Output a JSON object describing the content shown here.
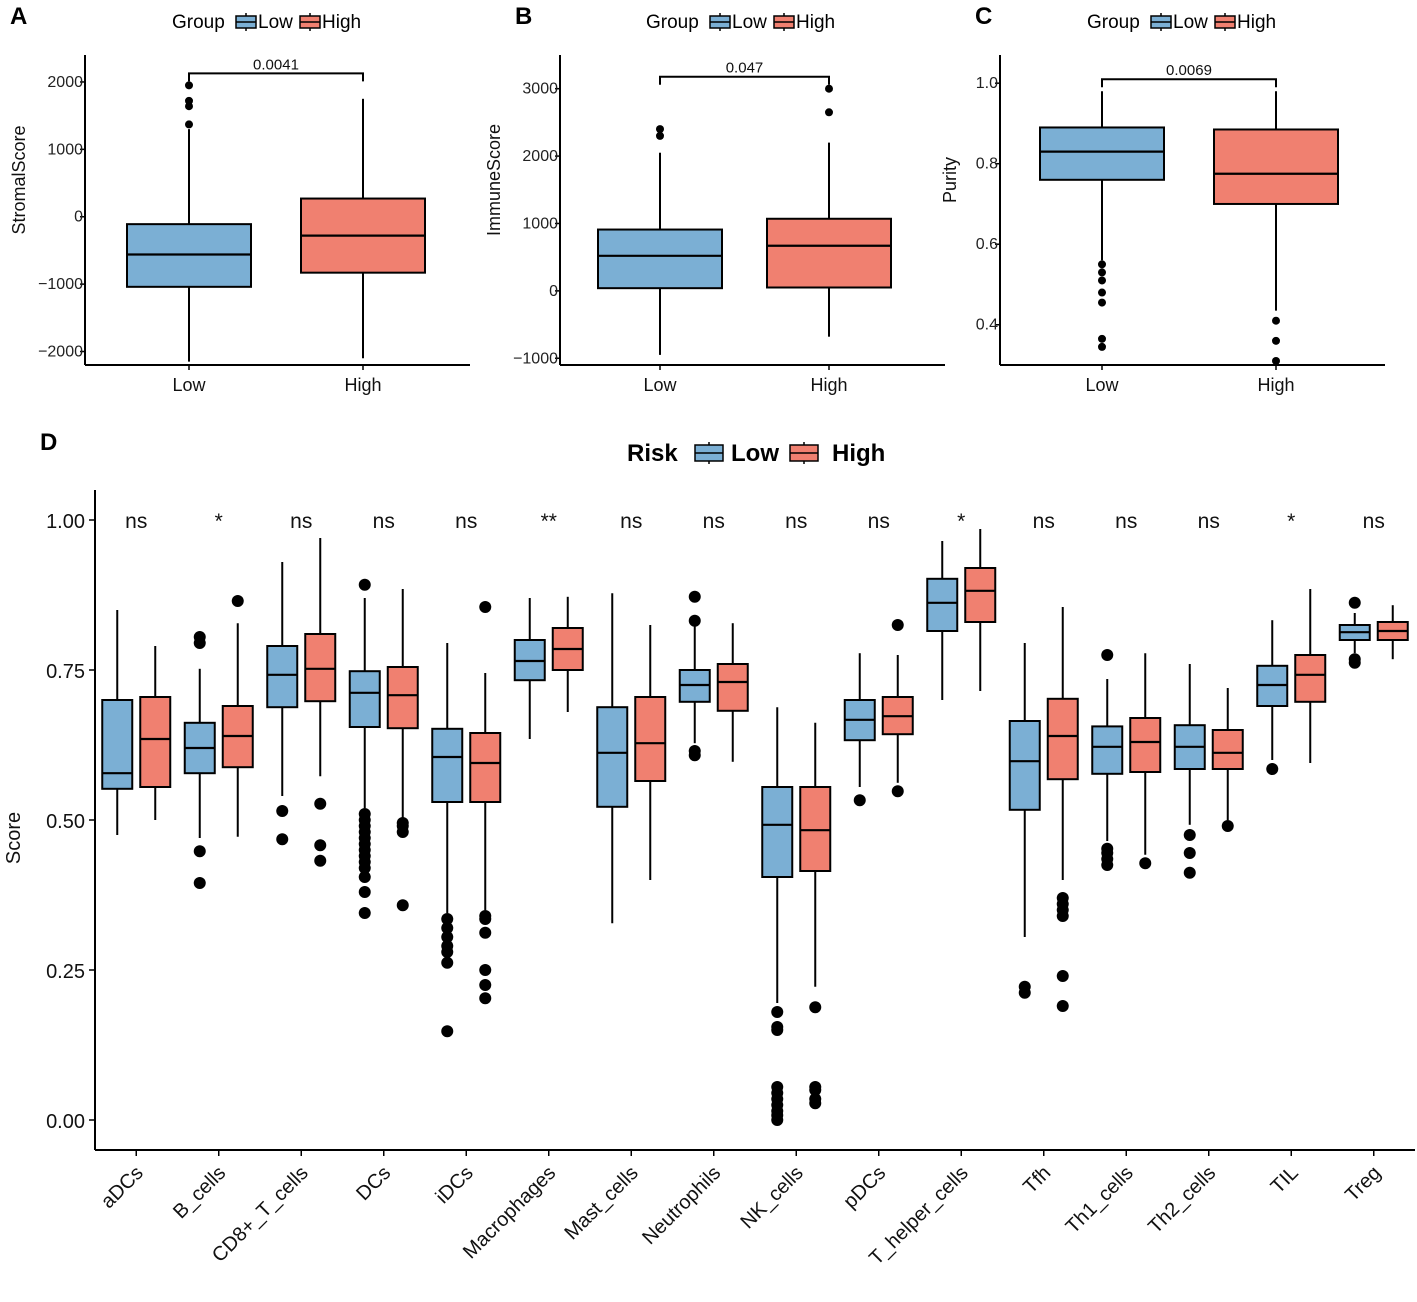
{
  "colors": {
    "low": "#7BAFD4",
    "high": "#F08070",
    "stroke": "#000000"
  },
  "chart_data": [
    {
      "panel": "A",
      "type": "box",
      "legend": {
        "title": "Group",
        "items": [
          "Low",
          "High"
        ]
      },
      "ylabel": "StromalScore",
      "xlabel": "",
      "categories": [
        "Low",
        "High"
      ],
      "ylim": [
        -2200,
        2400
      ],
      "yticks": [
        -2000,
        -1000,
        0,
        1000,
        2000
      ],
      "ytick_labels": [
        "−2000",
        "−1000",
        "0",
        "1000",
        "2000"
      ],
      "pvalue": "0.0041",
      "boxes": [
        {
          "group": "Low",
          "min": -2150,
          "q1": -1040,
          "median": -560,
          "q3": -110,
          "max": 1300,
          "outliers": [
            1950,
            1720,
            1640,
            1370
          ]
        },
        {
          "group": "High",
          "min": -2100,
          "q1": -830,
          "median": -280,
          "q3": 270,
          "max": 1750,
          "outliers": []
        }
      ]
    },
    {
      "panel": "B",
      "type": "box",
      "legend": {
        "title": "Group",
        "items": [
          "Low",
          "High"
        ]
      },
      "ylabel": "ImmuneScore",
      "xlabel": "",
      "categories": [
        "Low",
        "High"
      ],
      "ylim": [
        -1100,
        3500
      ],
      "yticks": [
        -1000,
        0,
        1000,
        2000,
        3000
      ],
      "ytick_labels": [
        "−1000",
        "0",
        "1000",
        "2000",
        "3000"
      ],
      "pvalue": "0.047",
      "boxes": [
        {
          "group": "Low",
          "min": -950,
          "q1": 40,
          "median": 520,
          "q3": 910,
          "max": 2050,
          "outliers": [
            2400,
            2300
          ]
        },
        {
          "group": "High",
          "min": -680,
          "q1": 50,
          "median": 670,
          "q3": 1070,
          "max": 2200,
          "outliers": [
            3000,
            2650
          ]
        }
      ]
    },
    {
      "panel": "C",
      "type": "box",
      "legend": {
        "title": "Group",
        "items": [
          "Low",
          "High"
        ]
      },
      "ylabel": "Purity",
      "xlabel": "",
      "categories": [
        "Low",
        "High"
      ],
      "ylim": [
        0.3,
        1.07
      ],
      "yticks": [
        0.4,
        0.6,
        0.8,
        1.0
      ],
      "ytick_labels": [
        "0.4",
        "0.6",
        "0.8",
        "1.0"
      ],
      "pvalue": "0.0069",
      "boxes": [
        {
          "group": "Low",
          "min": 0.56,
          "q1": 0.76,
          "median": 0.83,
          "q3": 0.89,
          "max": 0.98,
          "outliers": [
            0.55,
            0.53,
            0.51,
            0.48,
            0.455,
            0.365,
            0.345
          ]
        },
        {
          "group": "High",
          "min": 0.435,
          "q1": 0.7,
          "median": 0.775,
          "q3": 0.885,
          "max": 0.98,
          "outliers": [
            0.41,
            0.36,
            0.31
          ]
        }
      ]
    },
    {
      "panel": "D",
      "type": "box",
      "legend": {
        "title": "Risk",
        "items": [
          "Low",
          "High"
        ]
      },
      "ylabel": "Score",
      "xlabel": "",
      "ylim": [
        -0.05,
        1.05
      ],
      "yticks": [
        0.0,
        0.25,
        0.5,
        0.75,
        1.0
      ],
      "ytick_labels": [
        "0.00",
        "0.25",
        "0.50",
        "0.75",
        "1.00"
      ],
      "categories": [
        "aDCs",
        "B_cells",
        "CD8+_T_cells",
        "DCs",
        "iDCs",
        "Macrophages",
        "Mast_cells",
        "Neutrophils",
        "NK_cells",
        "pDCs",
        "T_helper_cells",
        "Tfh",
        "Th1_cells",
        "Th2_cells",
        "TIL",
        "Treg"
      ],
      "significance": [
        "ns",
        "*",
        "ns",
        "ns",
        "ns",
        "**",
        "ns",
        "ns",
        "ns",
        "ns",
        "*",
        "ns",
        "ns",
        "ns",
        "*",
        "ns"
      ],
      "series": [
        {
          "name": "Low",
          "boxes": [
            {
              "min": 0.475,
              "q1": 0.552,
              "median": 0.578,
              "q3": 0.7,
              "max": 0.85,
              "outliers": []
            },
            {
              "min": 0.47,
              "q1": 0.578,
              "median": 0.62,
              "q3": 0.662,
              "max": 0.752,
              "outliers": [
                0.805,
                0.795,
                0.448,
                0.395
              ]
            },
            {
              "min": 0.54,
              "q1": 0.688,
              "median": 0.742,
              "q3": 0.79,
              "max": 0.93,
              "outliers": [
                0.515,
                0.468
              ]
            },
            {
              "min": 0.52,
              "q1": 0.655,
              "median": 0.712,
              "q3": 0.748,
              "max": 0.87,
              "outliers": [
                0.892,
                0.51,
                0.5,
                0.49,
                0.48,
                0.47,
                0.46,
                0.45,
                0.44,
                0.43,
                0.42,
                0.405,
                0.38,
                0.345
              ]
            },
            {
              "min": 0.345,
              "q1": 0.53,
              "median": 0.605,
              "q3": 0.652,
              "max": 0.795,
              "outliers": [
                0.335,
                0.32,
                0.305,
                0.29,
                0.28,
                0.262,
                0.148
              ]
            },
            {
              "min": 0.635,
              "q1": 0.733,
              "median": 0.765,
              "q3": 0.8,
              "max": 0.87,
              "outliers": []
            },
            {
              "min": 0.328,
              "q1": 0.522,
              "median": 0.612,
              "q3": 0.688,
              "max": 0.878,
              "outliers": []
            },
            {
              "min": 0.628,
              "q1": 0.697,
              "median": 0.725,
              "q3": 0.75,
              "max": 0.84,
              "outliers": [
                0.872,
                0.832,
                0.615,
                0.608
              ]
            },
            {
              "min": 0.195,
              "q1": 0.405,
              "median": 0.492,
              "q3": 0.555,
              "max": 0.688,
              "outliers": [
                0.18,
                0.155,
                0.15,
                0.055,
                0.045,
                0.035,
                0.025,
                0.015,
                0.008,
                0.0
              ]
            },
            {
              "min": 0.555,
              "q1": 0.633,
              "median": 0.667,
              "q3": 0.7,
              "max": 0.778,
              "outliers": [
                0.533
              ]
            },
            {
              "min": 0.7,
              "q1": 0.815,
              "median": 0.862,
              "q3": 0.902,
              "max": 0.965,
              "outliers": []
            },
            {
              "min": 0.305,
              "q1": 0.517,
              "median": 0.598,
              "q3": 0.665,
              "max": 0.795,
              "outliers": [
                0.222,
                0.212
              ]
            },
            {
              "min": 0.465,
              "q1": 0.577,
              "median": 0.622,
              "q3": 0.656,
              "max": 0.735,
              "outliers": [
                0.775,
                0.452,
                0.445,
                0.435,
                0.425
              ]
            },
            {
              "min": 0.492,
              "q1": 0.585,
              "median": 0.622,
              "q3": 0.658,
              "max": 0.76,
              "outliers": [
                0.475,
                0.445,
                0.412
              ]
            },
            {
              "min": 0.6,
              "q1": 0.69,
              "median": 0.725,
              "q3": 0.757,
              "max": 0.833,
              "outliers": [
                0.585
              ]
            },
            {
              "min": 0.778,
              "q1": 0.8,
              "median": 0.813,
              "q3": 0.825,
              "max": 0.845,
              "outliers": [
                0.862,
                0.768,
                0.762
              ]
            }
          ]
        },
        {
          "name": "High",
          "boxes": [
            {
              "min": 0.5,
              "q1": 0.555,
              "median": 0.635,
              "q3": 0.705,
              "max": 0.79,
              "outliers": []
            },
            {
              "min": 0.472,
              "q1": 0.588,
              "median": 0.64,
              "q3": 0.69,
              "max": 0.828,
              "outliers": [
                0.865
              ]
            },
            {
              "min": 0.573,
              "q1": 0.698,
              "median": 0.752,
              "q3": 0.81,
              "max": 0.97,
              "outliers": [
                0.527,
                0.458,
                0.432
              ]
            },
            {
              "min": 0.5,
              "q1": 0.653,
              "median": 0.708,
              "q3": 0.755,
              "max": 0.885,
              "outliers": [
                0.495,
                0.49,
                0.48,
                0.358
              ]
            },
            {
              "min": 0.35,
              "q1": 0.53,
              "median": 0.595,
              "q3": 0.645,
              "max": 0.745,
              "outliers": [
                0.855,
                0.34,
                0.335,
                0.312,
                0.25,
                0.225,
                0.203
              ]
            },
            {
              "min": 0.68,
              "q1": 0.75,
              "median": 0.785,
              "q3": 0.82,
              "max": 0.872,
              "outliers": []
            },
            {
              "min": 0.4,
              "q1": 0.565,
              "median": 0.628,
              "q3": 0.705,
              "max": 0.825,
              "outliers": []
            },
            {
              "min": 0.597,
              "q1": 0.682,
              "median": 0.73,
              "q3": 0.76,
              "max": 0.828,
              "outliers": []
            },
            {
              "min": 0.222,
              "q1": 0.415,
              "median": 0.483,
              "q3": 0.555,
              "max": 0.662,
              "outliers": [
                0.188,
                0.055,
                0.05,
                0.035,
                0.028
              ]
            },
            {
              "min": 0.562,
              "q1": 0.643,
              "median": 0.673,
              "q3": 0.705,
              "max": 0.775,
              "outliers": [
                0.825,
                0.548
              ]
            },
            {
              "min": 0.715,
              "q1": 0.83,
              "median": 0.882,
              "q3": 0.92,
              "max": 0.985,
              "outliers": []
            },
            {
              "min": 0.4,
              "q1": 0.568,
              "median": 0.64,
              "q3": 0.702,
              "max": 0.855,
              "outliers": [
                0.37,
                0.36,
                0.35,
                0.34,
                0.24,
                0.19
              ]
            },
            {
              "min": 0.442,
              "q1": 0.58,
              "median": 0.63,
              "q3": 0.67,
              "max": 0.778,
              "outliers": [
                0.428
              ]
            },
            {
              "min": 0.5,
              "q1": 0.585,
              "median": 0.612,
              "q3": 0.65,
              "max": 0.72,
              "outliers": [
                0.49
              ]
            },
            {
              "min": 0.595,
              "q1": 0.697,
              "median": 0.742,
              "q3": 0.775,
              "max": 0.885,
              "outliers": []
            },
            {
              "min": 0.768,
              "q1": 0.8,
              "median": 0.815,
              "q3": 0.83,
              "max": 0.858,
              "outliers": []
            }
          ]
        }
      ]
    }
  ]
}
